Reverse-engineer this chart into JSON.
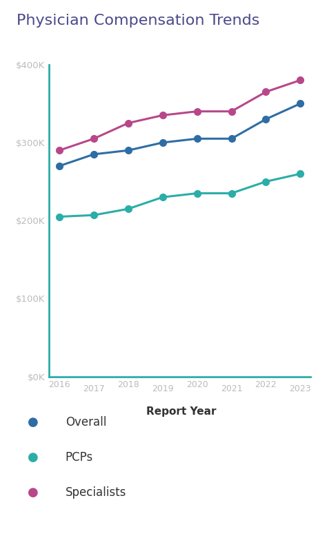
{
  "title": "Physician Compensation Trends",
  "years": [
    2016,
    2017,
    2018,
    2019,
    2020,
    2021,
    2022,
    2023
  ],
  "overall": [
    270000,
    285000,
    290000,
    300000,
    305000,
    305000,
    330000,
    350000
  ],
  "pcps": [
    205000,
    207000,
    215000,
    230000,
    235000,
    235000,
    250000,
    260000
  ],
  "specialists": [
    290000,
    305000,
    325000,
    335000,
    340000,
    340000,
    365000,
    380000
  ],
  "overall_color": "#2E6DA4",
  "pcps_color": "#2BADA8",
  "specialists_color": "#B8478A",
  "axis_color": "#2BADA8",
  "title_color": "#4a4a8a",
  "label_color": "#aaaaaa",
  "tick_label_color": "#bbbbbb",
  "xlabel": "Report Year",
  "ylim": [
    0,
    400000
  ],
  "yticks": [
    0,
    100000,
    200000,
    300000,
    400000
  ],
  "ytick_labels": [
    "$0K",
    "$100K",
    "$200K",
    "$300K",
    "$400K"
  ],
  "legend_labels": [
    "Overall",
    "PCPs",
    "Specialists"
  ],
  "background_color": "#ffffff",
  "linewidth": 2.2,
  "markersize": 7
}
